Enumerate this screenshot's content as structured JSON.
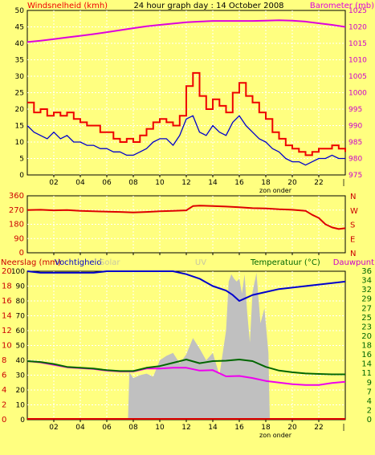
{
  "title": "24 hour graph day : 14 October 2008",
  "colors": {
    "bg": "#ffff80",
    "wind_speed": "#ee0000",
    "wind_avg": "#0000cc",
    "barometer": "#dd00dd",
    "wind_dir": "#dd0000",
    "humidity": "#0000cc",
    "temperature": "#006600",
    "dewpoint": "#ee00ee",
    "solar": "#c0c0c0",
    "rain": "#dd0000"
  },
  "x_ticks": [
    "02",
    "04",
    "06",
    "08",
    "10",
    "12",
    "14",
    "16",
    "18",
    "20",
    "22"
  ],
  "x_end_tick": "|",
  "sun_label": "zon onder",
  "chart_data": [
    {
      "type": "line",
      "name": "wind-barometer",
      "left_label": "Windsnelheid (kmh)",
      "right_label": "Barometer (mb)",
      "ylim_left": [
        0,
        50
      ],
      "ylim_right": [
        975,
        1025
      ],
      "left_ticks": [
        "0",
        "5",
        "10",
        "15",
        "20",
        "25",
        "30",
        "35",
        "40",
        "45",
        "50"
      ],
      "right_ticks": [
        "975",
        "980",
        "985",
        "990",
        "995",
        "1000",
        "1005",
        "1010",
        "1015",
        "1020",
        "1025"
      ],
      "xlim": [
        0,
        24
      ],
      "series": [
        {
          "key": "gust",
          "x": [
            0,
            0.5,
            1,
            1.5,
            2,
            2.5,
            3,
            3.5,
            4,
            4.5,
            5,
            5.5,
            6,
            6.5,
            7,
            7.5,
            8,
            8.5,
            9,
            9.5,
            10,
            10.5,
            11,
            11.5,
            12,
            12.5,
            13,
            13.5,
            14,
            14.5,
            15,
            15.5,
            16,
            16.5,
            17,
            17.5,
            18,
            18.5,
            19,
            19.5,
            20,
            20.5,
            21,
            21.5,
            22,
            22.5,
            23,
            23.5,
            24
          ],
          "y": [
            22,
            19,
            20,
            18,
            19,
            18,
            19,
            17,
            16,
            15,
            15,
            13,
            13,
            11,
            10,
            11,
            10,
            12,
            14,
            16,
            17,
            16,
            15,
            18,
            27,
            31,
            24,
            20,
            23,
            21,
            19,
            25,
            28,
            24,
            22,
            19,
            17,
            13,
            11,
            9,
            8,
            7,
            6,
            7,
            8,
            8,
            9,
            8,
            7
          ]
        },
        {
          "key": "average",
          "x": [
            0,
            0.5,
            1,
            1.5,
            2,
            2.5,
            3,
            3.5,
            4,
            4.5,
            5,
            5.5,
            6,
            6.5,
            7,
            7.5,
            8,
            8.5,
            9,
            9.5,
            10,
            10.5,
            11,
            11.5,
            12,
            12.5,
            13,
            13.5,
            14,
            14.5,
            15,
            15.5,
            16,
            16.5,
            17,
            17.5,
            18,
            18.5,
            19,
            19.5,
            20,
            20.5,
            21,
            21.5,
            22,
            22.5,
            23,
            23.5,
            24
          ],
          "y": [
            15,
            13,
            12,
            11,
            13,
            11,
            12,
            10,
            10,
            9,
            9,
            8,
            8,
            7,
            7,
            6,
            6,
            7,
            8,
            10,
            11,
            11,
            9,
            12,
            17,
            18,
            13,
            12,
            15,
            13,
            12,
            16,
            18,
            15,
            13,
            11,
            10,
            8,
            7,
            5,
            4,
            4,
            3,
            4,
            5,
            5,
            6,
            5,
            5
          ]
        },
        {
          "key": "barometer",
          "x": [
            0,
            1,
            2,
            3,
            4,
            5,
            6,
            7,
            8,
            9,
            10,
            11,
            12,
            13,
            14,
            15,
            16,
            17,
            18,
            19,
            20,
            21,
            22,
            23,
            24
          ],
          "y": [
            1015.4,
            1015.8,
            1016.3,
            1016.8,
            1017.3,
            1017.8,
            1018.4,
            1019.0,
            1019.6,
            1020.2,
            1020.6,
            1021.0,
            1021.4,
            1021.6,
            1021.8,
            1021.8,
            1021.8,
            1021.8,
            1021.9,
            1022.0,
            1021.9,
            1021.6,
            1021.1,
            1020.6,
            1020.0
          ]
        }
      ]
    },
    {
      "type": "line",
      "name": "wind-direction",
      "left_ticks": [
        "0",
        "90",
        "180",
        "270",
        "360"
      ],
      "right_ticks": [
        "N",
        "E",
        "S",
        "W",
        "N"
      ],
      "ylim": [
        0,
        360
      ],
      "xlim": [
        0,
        24
      ],
      "series": [
        {
          "key": "direction",
          "x": [
            0,
            1,
            2,
            3,
            4,
            5,
            6,
            7,
            8,
            9,
            10,
            11,
            12,
            12.5,
            13,
            14,
            15,
            16,
            17,
            18,
            19,
            20,
            21,
            21.5,
            22,
            22.5,
            23,
            23.5,
            24
          ],
          "y": [
            270,
            272,
            268,
            270,
            265,
            262,
            260,
            258,
            255,
            258,
            262,
            265,
            268,
            295,
            298,
            295,
            292,
            288,
            282,
            280,
            275,
            272,
            265,
            240,
            220,
            180,
            160,
            150,
            155
          ]
        }
      ]
    },
    {
      "type": "line",
      "name": "rain-humidity-temperature",
      "left_labels": [
        "Neerslag (mm)",
        "Vochtigheid",
        "Solar"
      ],
      "mid_label": "UV",
      "right_labels": [
        "Temperatuur (°C)",
        "Dauwpunt"
      ],
      "rain_ticks": [
        "0",
        "2",
        "4",
        "6",
        "8",
        "10",
        "12",
        "14",
        "16",
        "18",
        "20"
      ],
      "humidity_ticks": [
        "0",
        "10",
        "20",
        "30",
        "40",
        "50",
        "60",
        "70",
        "80",
        "90",
        "100"
      ],
      "temp_ticks": [
        "0",
        "2",
        "4",
        "7",
        "9",
        "11",
        "14",
        "16",
        "18",
        "20",
        "23",
        "25",
        "27",
        "29",
        "32",
        "34",
        "36"
      ],
      "ylim_humidity": [
        0,
        100
      ],
      "ylim_temperature": [
        0,
        36
      ],
      "xlim": [
        0,
        24
      ],
      "series": [
        {
          "key": "humidity",
          "x": [
            0,
            1,
            2,
            3,
            4,
            5,
            6,
            7,
            8,
            9,
            10,
            11,
            12,
            13,
            14,
            15,
            15.5,
            16,
            16.5,
            17,
            18,
            19,
            20,
            21,
            22,
            23,
            24
          ],
          "y": [
            100,
            99,
            99,
            99,
            99,
            99,
            100,
            100,
            100,
            100,
            100,
            100,
            98,
            95,
            90,
            87,
            84,
            80,
            82,
            84,
            86,
            88,
            89,
            90,
            91,
            92,
            93
          ]
        },
        {
          "key": "temperature",
          "x": [
            0,
            1,
            2,
            3,
            4,
            5,
            6,
            7,
            8,
            9,
            10,
            11,
            12,
            13,
            14,
            15,
            16,
            17,
            18,
            19,
            20,
            21,
            22,
            23,
            24
          ],
          "y": [
            14.2,
            14.0,
            13.5,
            12.8,
            12.6,
            12.4,
            12.0,
            11.8,
            11.8,
            12.6,
            13.0,
            13.8,
            14.6,
            13.7,
            14.2,
            14.3,
            14.6,
            14.2,
            12.8,
            11.9,
            11.5,
            11.2,
            11.1,
            11.0,
            11.0
          ]
        },
        {
          "key": "dewpoint",
          "x": [
            0,
            1,
            2,
            3,
            4,
            5,
            6,
            7,
            8,
            9,
            10,
            11,
            12,
            13,
            14,
            15,
            16,
            17,
            18,
            19,
            20,
            21,
            22,
            23,
            24
          ],
          "y": [
            14.2,
            13.9,
            13.3,
            12.7,
            12.5,
            12.3,
            11.9,
            11.7,
            11.7,
            12.4,
            12.4,
            12.6,
            12.6,
            11.9,
            12.0,
            10.5,
            10.6,
            10.1,
            9.4,
            9.0,
            8.6,
            8.4,
            8.4,
            8.9,
            9.2
          ]
        },
        {
          "key": "solar",
          "x": [
            7.6,
            7.7,
            8,
            8.5,
            9,
            9.5,
            10,
            10.5,
            11,
            11.5,
            12,
            12.5,
            13,
            13.5,
            14,
            14.5,
            15,
            15.2,
            15.4,
            15.6,
            15.8,
            16,
            16.2,
            16.4,
            16.6,
            16.8,
            17,
            17.3,
            17.6,
            17.9,
            18.2,
            18.3
          ],
          "y": [
            0,
            32,
            28,
            30,
            31,
            29,
            40,
            43,
            45,
            38,
            44,
            55,
            48,
            40,
            45,
            30,
            60,
            93,
            98,
            95,
            93,
            95,
            85,
            98,
            72,
            52,
            86,
            99,
            65,
            75,
            45,
            0
          ]
        },
        {
          "key": "rain",
          "x": [
            0,
            24
          ],
          "y": [
            0,
            0
          ]
        }
      ]
    }
  ]
}
